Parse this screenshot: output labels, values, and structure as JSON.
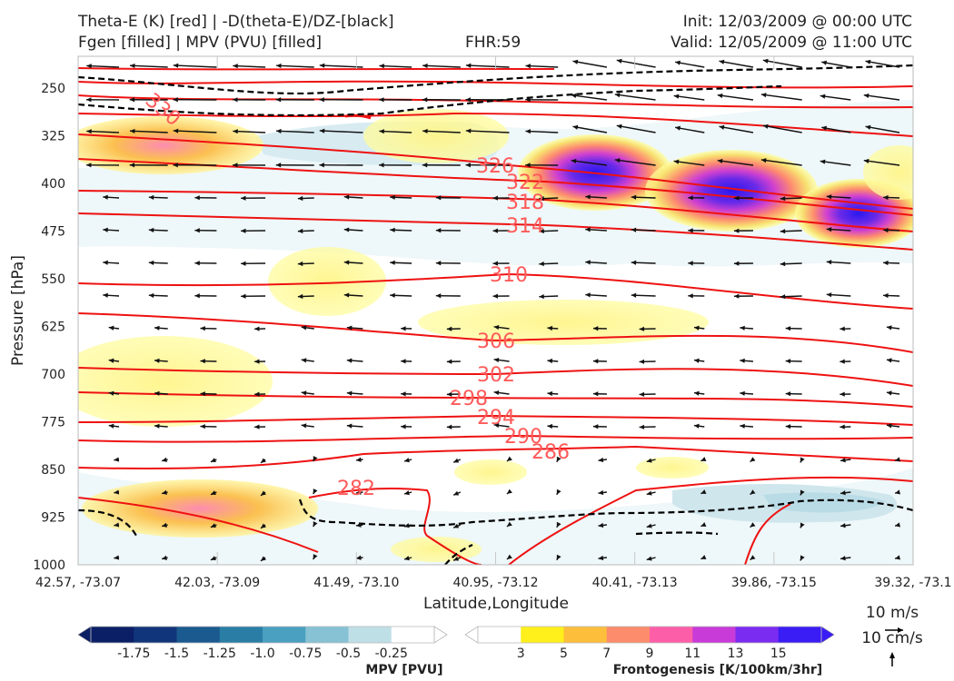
{
  "header": {
    "title_line1": "Theta-E (K) [red] | -D(theta-E)/DZ-[black]",
    "title_line2": "Fgen [filled] | MPV (PVU) [filled]",
    "fhr": "FHR:59",
    "init": "Init: 12/03/2009 @ 00:00 UTC",
    "valid": "Valid: 12/05/2009 @ 11:00 UTC"
  },
  "chart_data": {
    "type": "cross-section",
    "xlabel": "Latitude,Longitude",
    "ylabel": "Pressure [hPa]",
    "x_ticks": [
      "42.57, -73.07",
      "42.03, -73.09",
      "41.49, -73.10",
      "40.95, -73.12",
      "40.41, -73.13",
      "39.86, -73.15",
      "39.32, -73.1"
    ],
    "y_ticks": [
      250,
      325,
      400,
      475,
      550,
      625,
      700,
      775,
      850,
      925,
      1000
    ],
    "ylim": [
      1000,
      200
    ],
    "theta_e_contours": [
      {
        "label": "330",
        "level": 330
      },
      {
        "label": "326",
        "level": 326
      },
      {
        "label": "322",
        "level": 322
      },
      {
        "label": "318",
        "level": 318
      },
      {
        "label": "314",
        "level": 314
      },
      {
        "label": "310",
        "level": 310
      },
      {
        "label": "306",
        "level": 306
      },
      {
        "label": "302",
        "level": 302
      },
      {
        "label": "298",
        "level": 298
      },
      {
        "label": "294",
        "level": 294
      },
      {
        "label": "290",
        "level": 290
      },
      {
        "label": "286",
        "level": 286
      },
      {
        "label": "282",
        "level": 282
      }
    ],
    "mpv_colorbar": {
      "title": "MPV [PVU]",
      "ticks": [
        "-1.75",
        "-1.5",
        "-1.25",
        "-1.0",
        "-0.75",
        "-0.5",
        "-0.25"
      ],
      "colors": [
        "#0b1f66",
        "#11357a",
        "#1a5a8e",
        "#2a7ea6",
        "#4aa0c0",
        "#86c1d4",
        "#bfdfe6",
        "#ffffff"
      ]
    },
    "fgen_colorbar": {
      "title": "Frontogenesis [K/100km/3hr]",
      "ticks": [
        "3",
        "5",
        "7",
        "9",
        "11",
        "13",
        "15"
      ],
      "colors": [
        "#ffffff",
        "#ffef1a",
        "#fdbe3c",
        "#fc8c6c",
        "#fd5ea8",
        "#c83bd8",
        "#7a2cf0",
        "#3a1cf5"
      ]
    },
    "wind_reference": {
      "horizontal": "10 m/s",
      "vertical": "10 cm/s"
    },
    "colors": {
      "theta_e": "#ee1111",
      "stability": "#000000",
      "label": "#ff5a5a"
    }
  }
}
